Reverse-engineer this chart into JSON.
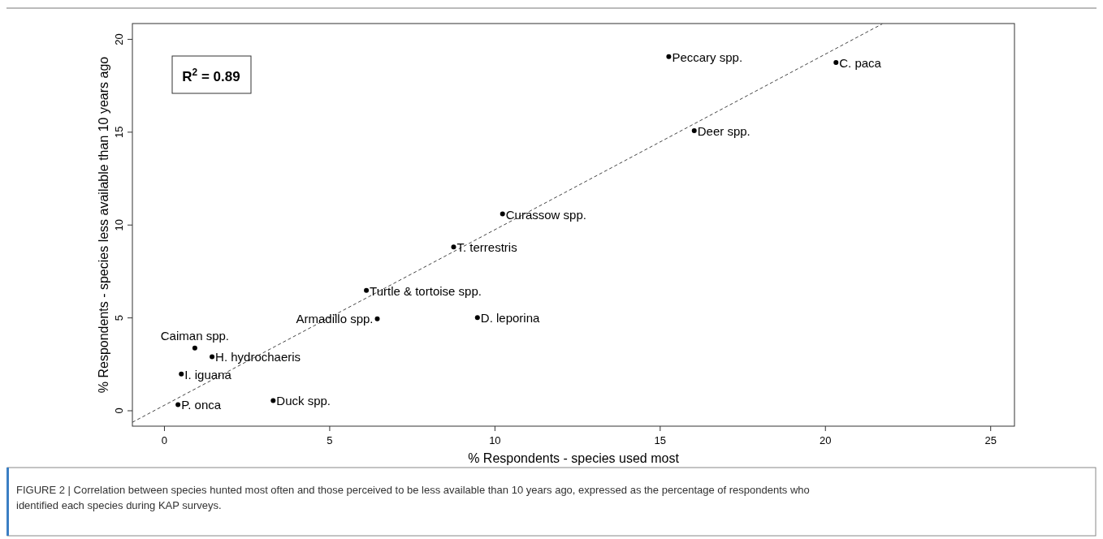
{
  "chart_data": {
    "type": "scatter",
    "xlabel": "% Respondents - species used most",
    "ylabel": "% Respondents - species less available than 10 years ago",
    "xlim": [
      -0.97,
      25.72
    ],
    "ylim": [
      -0.83,
      20.85
    ],
    "xticks": [
      0,
      5,
      10,
      15,
      20,
      25
    ],
    "yticks": [
      0,
      5,
      10,
      15,
      20
    ],
    "grid": false,
    "marker": "circle",
    "series": [
      {
        "color": "#000000",
        "x": [
          0.92,
          1.44,
          0.51,
          0.41,
          3.29,
          6.44,
          6.11,
          9.47,
          8.75,
          10.23,
          16.03,
          15.26,
          20.32
        ],
        "values": [
          3.38,
          2.91,
          1.98,
          0.33,
          0.55,
          4.95,
          6.48,
          5.02,
          8.82,
          10.6,
          15.08,
          19.07,
          18.75
        ]
      },
      {
        "type": "line",
        "color": "#444444",
        "line_style": "dashed",
        "marker": "none",
        "x": [
          -0.97,
          21.72
        ],
        "values": [
          -0.62,
          20.83
        ]
      }
    ],
    "annotations": [
      {
        "text": "Caiman spp.",
        "x": 0.92,
        "y": 3.38
      },
      {
        "text": "H. hydrochaeris",
        "x": 1.44,
        "y": 2.91
      },
      {
        "text": "I. iguana",
        "x": 0.51,
        "y": 1.98
      },
      {
        "text": "P. onca",
        "x": 0.41,
        "y": 0.33
      },
      {
        "text": "Duck spp.",
        "x": 3.29,
        "y": 0.55
      },
      {
        "text": "Armadillo spp.",
        "x": 6.44,
        "y": 4.95
      },
      {
        "text": "Turtle & tortoise spp.",
        "x": 6.11,
        "y": 6.48
      },
      {
        "text": "D. leporina",
        "x": 9.47,
        "y": 5.02
      },
      {
        "text": "T. terrestris",
        "x": 8.75,
        "y": 8.82
      },
      {
        "text": "Curassow spp.",
        "x": 10.23,
        "y": 10.6
      },
      {
        "text": "Deer spp.",
        "x": 16.03,
        "y": 15.08
      },
      {
        "text": "Peccary spp.",
        "x": 15.26,
        "y": 19.07
      },
      {
        "text": "C. paca",
        "x": 20.32,
        "y": 18.75
      },
      "R$^{2}$ = 0.89",
      "FIGURE 2 | Correlation between species hunted most often and those perceived to be less available than 10 years ago, expressed as the percentage of respondents who identified each species during KAP surveys."
    ]
  }
}
